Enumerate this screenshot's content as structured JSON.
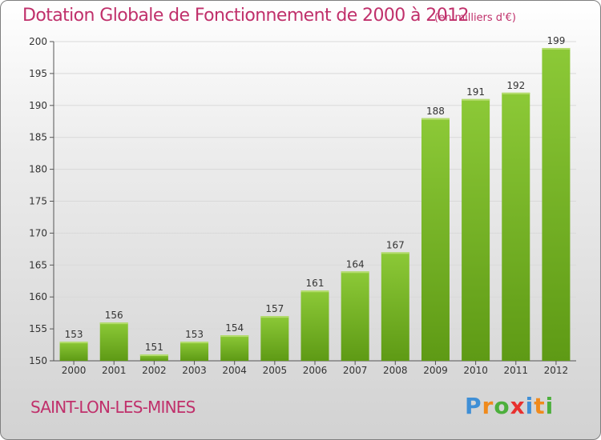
{
  "title": "Dotation Globale de Fonctionnement de 2000 à 2012",
  "unit": "(en milliers d'€)",
  "commune": "SAINT-LON-LES-MINES",
  "logo": {
    "letters": [
      "P",
      "r",
      "o",
      "x",
      "i",
      "t",
      "i"
    ],
    "colors": [
      "#3f8fd6",
      "#f08a1c",
      "#4caf3c",
      "#e8312f",
      "#3f8fd6",
      "#f08a1c",
      "#4caf3c"
    ]
  },
  "colors": {
    "bar": "#7fbd2c",
    "bar_dark": "#5e9617",
    "title": "#c0306b",
    "grid": "#d9d9d9"
  },
  "chart_data": {
    "type": "bar",
    "categories": [
      "2000",
      "2001",
      "2002",
      "2003",
      "2004",
      "2005",
      "2006",
      "2007",
      "2008",
      "2009",
      "2010",
      "2011",
      "2012"
    ],
    "values": [
      153,
      156,
      151,
      153,
      154,
      157,
      161,
      164,
      167,
      188,
      191,
      192,
      199
    ],
    "ylim": [
      150,
      200
    ],
    "yticks": [
      150,
      155,
      160,
      165,
      170,
      175,
      180,
      185,
      190,
      195,
      200
    ],
    "grid": true,
    "xlabel": "",
    "ylabel": ""
  }
}
